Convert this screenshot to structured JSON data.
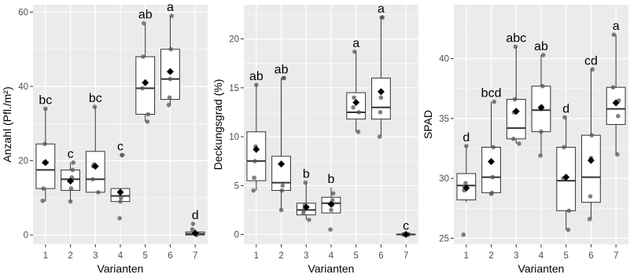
{
  "colors": {
    "panel_background": "#ebebeb",
    "gridline": "#ffffff",
    "box_fill": "#ffffff",
    "box_stroke": "#333333",
    "point": "#555555",
    "mean_marker": "#000000"
  },
  "chart_data": [
    {
      "type": "boxplot",
      "xlabel": "Varianten",
      "ylabel": "Anzahl (Pfl./m²)",
      "categories": [
        "1",
        "2",
        "3",
        "4",
        "5",
        "6",
        "7"
      ],
      "ylim": [
        -2.5,
        62
      ],
      "yticks": [
        "0",
        "20",
        "40",
        "60"
      ],
      "grid": true,
      "boxes": [
        {
          "q1": 12.5,
          "median": 17.5,
          "q3": 24.5,
          "whisker_low": 9,
          "whisker_high": 34,
          "mean": 19.5,
          "points": [
            9.2,
            12.5,
            19.5,
            24.5,
            34
          ]
        },
        {
          "q1": 12,
          "median": 15,
          "q3": 17.5,
          "whisker_low": 9,
          "whisker_high": 19.5,
          "mean": 14.5,
          "points": [
            9,
            12.5,
            15.5,
            17.5,
            19.5
          ]
        },
        {
          "q1": 11.5,
          "median": 15,
          "q3": 22.5,
          "whisker_low": 11.5,
          "whisker_high": 34.5,
          "mean": 18.5,
          "points": [
            11.5,
            15,
            18.5,
            19,
            34.5
          ]
        },
        {
          "q1": 9,
          "median": 10.5,
          "q3": 12.5,
          "whisker_low": 9,
          "whisker_high": 12.5,
          "mean": 11.5,
          "points": [
            4.5,
            9,
            10,
            21.5,
            21.5
          ]
        },
        {
          "q1": 32.5,
          "median": 39.5,
          "q3": 48,
          "whisker_low": 30.5,
          "whisker_high": 57,
          "mean": 41,
          "points": [
            30.5,
            32.5,
            39.5,
            48,
            57
          ]
        },
        {
          "q1": 36.5,
          "median": 42,
          "q3": 50,
          "whisker_low": 35,
          "whisker_high": 59,
          "mean": 44,
          "points": [
            35,
            37,
            42,
            50,
            59
          ]
        },
        {
          "q1": 0,
          "median": 0.3,
          "q3": 0.8,
          "whisker_low": 0,
          "whisker_high": 1.5,
          "mean": 0.5,
          "points": [
            0,
            0.2,
            0.4,
            1.5,
            3
          ]
        }
      ],
      "significance": [
        "bc",
        "c",
        "bc",
        "c",
        "ab",
        "a",
        "d"
      ]
    },
    {
      "type": "boxplot",
      "xlabel": "Varianten",
      "ylabel": "Deckungsgrad (%)",
      "categories": [
        "1",
        "2",
        "3",
        "4",
        "5",
        "6",
        "7"
      ],
      "ylim": [
        -1,
        23.5
      ],
      "yticks": [
        "0",
        "5",
        "10",
        "15",
        "20"
      ],
      "grid": true,
      "boxes": [
        {
          "q1": 5.5,
          "median": 7.5,
          "q3": 10.5,
          "whisker_low": 4.5,
          "whisker_high": 15.3,
          "mean": 8.7,
          "points": [
            4.5,
            5.8,
            7.5,
            9,
            15.3
          ]
        },
        {
          "q1": 4.5,
          "median": 5.3,
          "q3": 8,
          "whisker_low": 2.5,
          "whisker_high": 16,
          "mean": 7.2,
          "points": [
            2.5,
            4.5,
            5,
            16,
            16
          ]
        },
        {
          "q1": 2,
          "median": 2.5,
          "q3": 3.2,
          "whisker_low": 1.5,
          "whisker_high": 5.3,
          "mean": 2.8,
          "points": [
            1.5,
            2.2,
            2.5,
            3,
            5.3
          ]
        },
        {
          "q1": 2.2,
          "median": 3.2,
          "q3": 3.8,
          "whisker_low": 2.2,
          "whisker_high": 4.8,
          "mean": 3.1,
          "points": [
            0.5,
            2.5,
            3,
            3.5,
            4.2
          ]
        },
        {
          "q1": 11.8,
          "median": 12.5,
          "q3": 14.5,
          "whisker_low": 10.5,
          "whisker_high": 18.7,
          "mean": 13.5,
          "points": [
            10.5,
            12.5,
            13,
            14,
            18.7
          ]
        },
        {
          "q1": 11.8,
          "median": 13,
          "q3": 16,
          "whisker_low": 10,
          "whisker_high": 22.2,
          "mean": 14.6,
          "points": [
            10,
            12.5,
            14,
            22.2,
            22.2
          ]
        },
        {
          "q1": 0,
          "median": 0,
          "q3": 0,
          "whisker_low": 0,
          "whisker_high": 0,
          "mean": 0,
          "points": [
            0,
            0,
            0,
            0,
            0
          ]
        }
      ],
      "significance": [
        "ab",
        "ab",
        "b",
        "b",
        "a",
        "a",
        "c"
      ]
    },
    {
      "type": "boxplot",
      "xlabel": "Varianten",
      "ylabel": "SPAD",
      "categories": [
        "1",
        "2",
        "3",
        "4",
        "5",
        "6",
        "7"
      ],
      "ylim": [
        24.5,
        44.5
      ],
      "yticks": [
        "25",
        "30",
        "35",
        "40"
      ],
      "grid": true,
      "boxes": [
        {
          "q1": 28.2,
          "median": 29.4,
          "q3": 30.4,
          "whisker_low": 28,
          "whisker_high": 32.7,
          "mean": 29.2,
          "points": [
            25.3,
            29,
            29.3,
            29.6,
            32.7
          ]
        },
        {
          "q1": 28.8,
          "median": 30.1,
          "q3": 32.6,
          "whisker_low": 28.7,
          "whisker_high": 36.4,
          "mean": 31.4,
          "points": [
            28.7,
            28.8,
            30.1,
            32.6,
            36.4
          ]
        },
        {
          "q1": 33.3,
          "median": 34.2,
          "q3": 36.6,
          "whisker_low": 32.9,
          "whisker_high": 41,
          "mean": 35.6,
          "points": [
            32.9,
            33.3,
            35.5,
            36.6,
            41
          ]
        },
        {
          "q1": 33.9,
          "median": 35.7,
          "q3": 37.7,
          "whisker_low": 31.9,
          "whisker_high": 40.3,
          "mean": 35.9,
          "points": [
            31.9,
            33.9,
            36,
            37.7,
            40.3
          ]
        },
        {
          "q1": 27.3,
          "median": 29.8,
          "q3": 32.6,
          "whisker_low": 25.7,
          "whisker_high": 35.1,
          "mean": 30.1,
          "points": [
            25.7,
            27.3,
            30,
            32.6,
            35.1
          ]
        },
        {
          "q1": 28,
          "median": 30.1,
          "q3": 33.6,
          "whisker_low": 26.6,
          "whisker_high": 39.1,
          "mean": 31.5,
          "points": [
            26.6,
            28.5,
            31.7,
            33.6,
            39.1
          ]
        },
        {
          "q1": 34.5,
          "median": 35.8,
          "q3": 37.6,
          "whisker_low": 32,
          "whisker_high": 42,
          "mean": 36.3,
          "points": [
            32,
            35.2,
            36.5,
            37.6,
            42
          ]
        }
      ],
      "significance": [
        "d",
        "bcd",
        "abc",
        "ab",
        "d",
        "cd",
        "a"
      ]
    }
  ]
}
